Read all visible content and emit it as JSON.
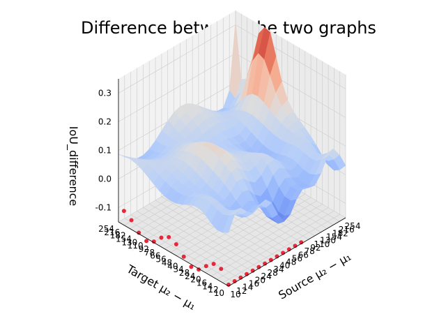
{
  "chart_data": {
    "type": "surface3d",
    "title": "Difference between the two graphs",
    "xlabel": "Source μ₂ − μ₁",
    "ylabel": "Target μ₂ − μ₁",
    "zlabel": "IoU_difference",
    "x_ticks": [
      "10",
      "12",
      "14",
      "16",
      "20",
      "24",
      "28",
      "34",
      "40",
      "48",
      "56",
      "66",
      "78",
      "92",
      "110",
      "130",
      "154",
      "182",
      "216",
      "254"
    ],
    "y_ticks": [
      "10",
      "12",
      "14",
      "16",
      "20",
      "24",
      "28",
      "34",
      "40",
      "48",
      "56",
      "66",
      "78",
      "92",
      "110",
      "130",
      "154",
      "182",
      "216",
      "254"
    ],
    "z_ticks": [
      -0.1,
      0.0,
      0.1,
      0.2,
      0.3
    ],
    "zlim": [
      -0.15,
      0.35
    ],
    "colormap": "coolwarm",
    "grid": true,
    "peaks": [
      {
        "source": "254",
        "target": "254",
        "iou_difference": 0.33
      },
      {
        "source": "254",
        "target": "110",
        "iou_difference": 0.36
      }
    ],
    "marker_color": "#e8283a",
    "marker_note": "red dots mark minimum values along the front edges"
  }
}
